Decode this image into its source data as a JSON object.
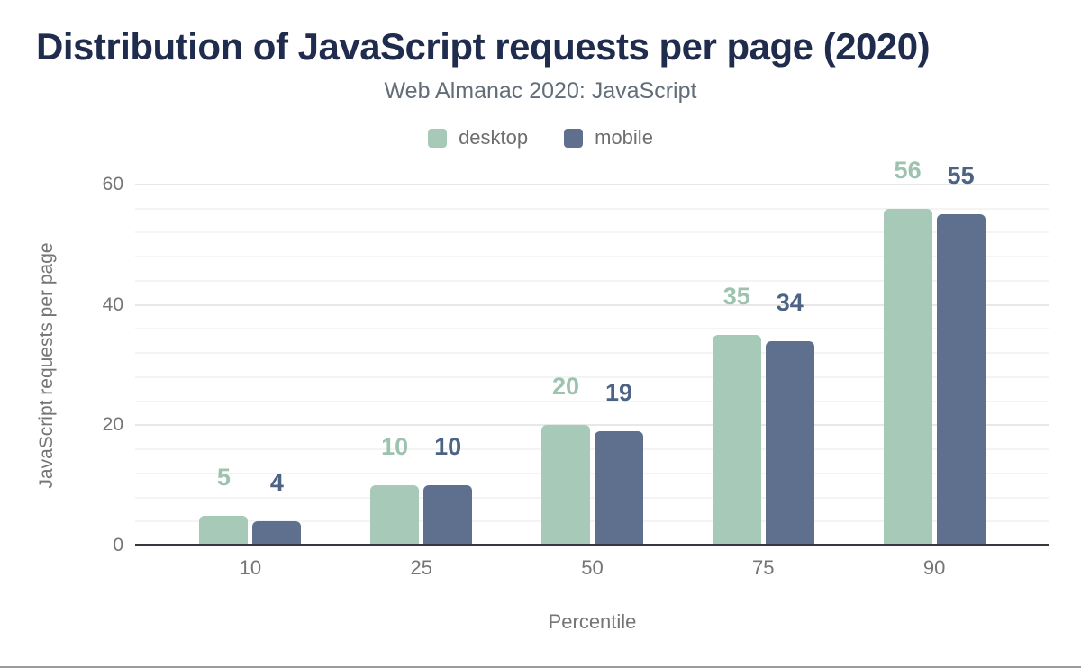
{
  "chart_data": {
    "type": "bar",
    "title": "Distribution of JavaScript requests per page (2020)",
    "subtitle": "Web Almanac 2020: JavaScript",
    "xlabel": "Percentile",
    "ylabel": "JavaScript requests per page",
    "categories": [
      "10",
      "25",
      "50",
      "75",
      "90"
    ],
    "series": [
      {
        "name": "desktop",
        "values": [
          5,
          10,
          20,
          35,
          56
        ],
        "color": "#a7c9b7",
        "label_color": "#9dc3ae"
      },
      {
        "name": "mobile",
        "values": [
          4,
          10,
          19,
          34,
          55
        ],
        "color": "#5e708e",
        "label_color": "#4c6385"
      }
    ],
    "ylim": [
      0,
      60
    ],
    "yticks": [
      0,
      20,
      40,
      60
    ],
    "minor_grid_interval": 4,
    "legend_position": "top",
    "grid": "horizontal"
  },
  "colors": {
    "title": "#1f2c4d",
    "subtitle": "#626d79",
    "axis_text": "#757575",
    "axis_line": "#35383e",
    "grid_minor": "#f4f4f4",
    "grid_major": "#e8e8e8",
    "page_border_bottom": "#9b9b9b",
    "background": "#ffffff"
  }
}
